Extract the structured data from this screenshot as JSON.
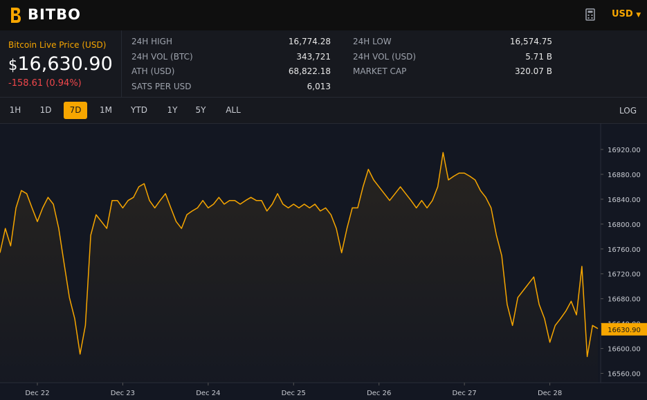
{
  "header": {
    "brand": "BITBO",
    "currency": "USD"
  },
  "price": {
    "caption": "Bitcoin Live Price (USD)",
    "symbol": "$",
    "amount": "16,630.90",
    "change": "-158.61 (0.94%)"
  },
  "stats": [
    {
      "label": "24H HIGH",
      "value": "16,774.28"
    },
    {
      "label": "24H LOW",
      "value": "16,574.75"
    },
    {
      "label": "24H VOL (BTC)",
      "value": "343,721"
    },
    {
      "label": "24H VOL (USD)",
      "value": "5.71 B"
    },
    {
      "label": "ATH (USD)",
      "value": "68,822.18"
    },
    {
      "label": "MARKET CAP",
      "value": "320.07 B"
    },
    {
      "label": "SATS PER USD",
      "value": "6,013"
    }
  ],
  "ranges": [
    "1H",
    "1D",
    "7D",
    "1M",
    "YTD",
    "1Y",
    "5Y",
    "ALL"
  ],
  "active_range": 2,
  "log_button": "LOG",
  "chart_data": {
    "type": "line",
    "series": [
      {
        "name": "BTC",
        "color": "#f7a600",
        "values": [
          16754,
          16793,
          16765,
          16826,
          16854,
          16849,
          16826,
          16804,
          16826,
          16843,
          16832,
          16793,
          16737,
          16682,
          16648,
          16591,
          16637,
          16782,
          16815,
          16804,
          16793,
          16838,
          16838,
          16826,
          16838,
          16843,
          16860,
          16865,
          16838,
          16826,
          16838,
          16849,
          16826,
          16804,
          16793,
          16815,
          16821,
          16826,
          16838,
          16826,
          16832,
          16843,
          16832,
          16838,
          16838,
          16832,
          16838,
          16843,
          16838,
          16838,
          16821,
          16832,
          16849,
          16832,
          16826,
          16832,
          16826,
          16832,
          16826,
          16832,
          16821,
          16826,
          16815,
          16793,
          16754,
          16793,
          16826,
          16826,
          16860,
          16888,
          16871,
          16860,
          16849,
          16838,
          16849,
          16860,
          16849,
          16838,
          16826,
          16838,
          16826,
          16838,
          16860,
          16915,
          16871,
          16877,
          16882,
          16882,
          16877,
          16871,
          16854,
          16843,
          16826,
          16782,
          16749,
          16671,
          16637,
          16682,
          16693,
          16704,
          16715,
          16671,
          16648,
          16610,
          16637,
          16648,
          16660,
          16676,
          16654,
          16732,
          16587,
          16637,
          16632
        ]
      }
    ],
    "xlim": [
      0,
      112
    ],
    "xticks": [
      {
        "value": 7,
        "label": "Dec 22"
      },
      {
        "value": 23,
        "label": "Dec 23"
      },
      {
        "value": 39,
        "label": "Dec 24"
      },
      {
        "value": 55,
        "label": "Dec 25"
      },
      {
        "value": 71,
        "label": "Dec 26"
      },
      {
        "value": 87,
        "label": "Dec 27"
      },
      {
        "value": 103,
        "label": "Dec 28"
      }
    ],
    "ylim": [
      16545,
      16960
    ],
    "yticks": [
      {
        "value": 16560,
        "label": "16560.00"
      },
      {
        "value": 16600,
        "label": "16600.00"
      },
      {
        "value": 16640,
        "label": "16640.00"
      },
      {
        "value": 16680,
        "label": "16680.00"
      },
      {
        "value": 16720,
        "label": "16720.00"
      },
      {
        "value": 16760,
        "label": "16760.00"
      },
      {
        "value": 16800,
        "label": "16800.00"
      },
      {
        "value": 16840,
        "label": "16840.00"
      },
      {
        "value": 16880,
        "label": "16880.00"
      },
      {
        "value": 16920,
        "label": "16920.00"
      }
    ],
    "current": {
      "value": 16630.9,
      "label": "16630.90"
    }
  }
}
